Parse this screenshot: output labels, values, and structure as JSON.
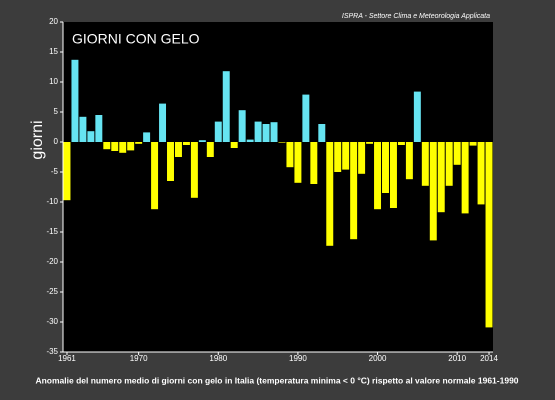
{
  "chart_data": {
    "type": "bar",
    "title": "GIORNI CON GELO",
    "source": "ISPRA - Settore Clima e Meteorologia Applicata",
    "y_label": "giorni",
    "caption": "Anomalie del numero medio di giorni con gelo in Italia (temperatura minima < 0 °C) rispetto al valore normale 1961-1990",
    "categories": [
      "1961",
      null,
      null,
      null,
      null,
      null,
      null,
      null,
      null,
      "1970",
      null,
      null,
      null,
      null,
      null,
      null,
      null,
      null,
      null,
      "1980",
      null,
      null,
      null,
      null,
      null,
      null,
      null,
      null,
      null,
      "1990",
      null,
      null,
      null,
      null,
      null,
      null,
      null,
      null,
      null,
      "2000",
      null,
      null,
      null,
      null,
      null,
      null,
      null,
      null,
      null,
      "2010",
      null,
      null,
      null,
      "2014"
    ],
    "values": [
      -9.7,
      13.7,
      4.2,
      1.8,
      4.5,
      -1.2,
      -1.5,
      -1.8,
      -1.4,
      -0.3,
      1.6,
      -11.2,
      6.4,
      -6.5,
      -2.5,
      -0.5,
      -9.3,
      0.3,
      -2.5,
      3.4,
      11.8,
      -1.0,
      5.3,
      0.4,
      3.4,
      3.0,
      3.3,
      -0.1,
      -4.2,
      -6.8,
      7.9,
      -7.0,
      3.0,
      -17.3,
      -5.0,
      -4.6,
      -16.2,
      -5.3,
      -0.3,
      -11.2,
      -8.5,
      -11.0,
      -0.5,
      -6.2,
      8.4,
      -7.3,
      -16.4,
      -11.7,
      -7.3,
      -3.8,
      -11.9,
      -0.6,
      -10.4,
      -30.9
    ],
    "positive_color": "#66e4f2",
    "negative_color": "#ffff00",
    "ylim": [
      -35,
      20
    ],
    "yticks": [
      20,
      15,
      10,
      5,
      0,
      -5,
      -10,
      -15,
      -20,
      -25,
      -30,
      -35
    ],
    "grid": false
  }
}
